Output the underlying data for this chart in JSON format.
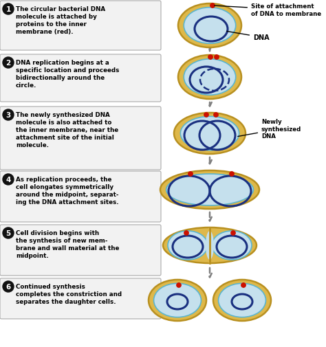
{
  "bg_color": "#ffffff",
  "step_texts": [
    "The circular bacterial DNA\nmolecule is attached by\nproteins to the inner\nmembrane (red).",
    "DNA replication begins at a\nspecific location and proceeds\nbidirectionally around the\ncircle.",
    "The newly synthesized DNA\nmolecule is also attached to\nthe inner membrane, near the\nattachment site of the initial\nmolecule.",
    "As replication proceeds, the\ncell elongates symmetrically\naround the midpoint, separat-\ning the DNA attachment sites.",
    "Cell division begins with\nthe synthesis of new mem-\nbrane and wall material at the\nmidpoint.",
    "Continued synthesis\ncompletes the constriction and\nseparates the daughter cells."
  ],
  "annotation1": "Site of attachment\nof DNA to membrane",
  "annotation2": "DNA",
  "annotation3": "Newly\nsynthesized\nDNA",
  "cell_outer_color": "#deb84a",
  "cell_inner_color": "#c5e0ed",
  "cell_border_color": "#b89020",
  "dna_ring_color": "#1a3080",
  "red_dot_color": "#cc1100",
  "arrow_color": "#808080",
  "box_face": "#f2f2f2",
  "box_edge": "#aaaaaa",
  "num_circle_color": "#111111"
}
